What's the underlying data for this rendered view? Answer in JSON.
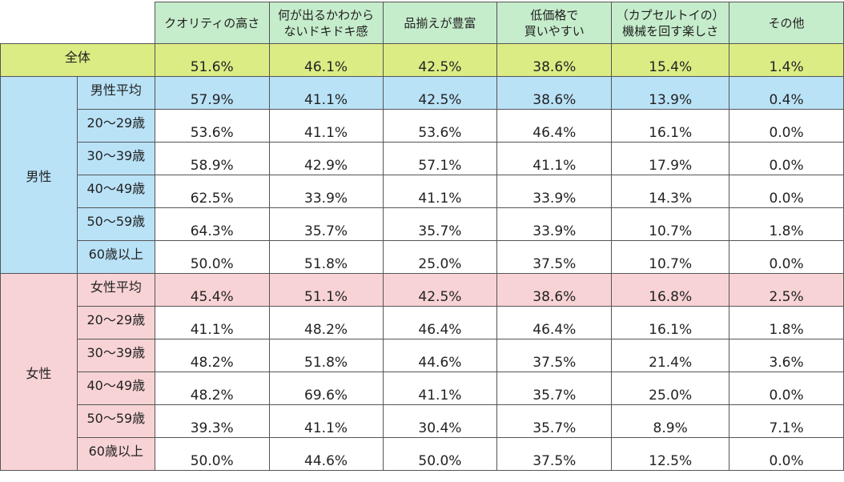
{
  "table": {
    "columns": [
      "クオリティの高さ",
      "何が出るかわから\nないドキドキ感",
      "品揃えが豊富",
      "低価格で\n買いやすい",
      "（カプセルトイの）\n機械を回す楽しさ",
      "その他"
    ],
    "total": {
      "label": "全体",
      "values": [
        "51.6%",
        "46.1%",
        "42.5%",
        "38.6%",
        "15.4%",
        "1.4%"
      ]
    },
    "groups": [
      {
        "label": "男性",
        "rows": [
          {
            "label": "男性平均",
            "values": [
              "57.9%",
              "41.1%",
              "42.5%",
              "38.6%",
              "13.9%",
              "0.4%"
            ]
          },
          {
            "label": "20～29歳",
            "values": [
              "53.6%",
              "41.1%",
              "53.6%",
              "46.4%",
              "16.1%",
              "0.0%"
            ]
          },
          {
            "label": "30～39歳",
            "values": [
              "58.9%",
              "42.9%",
              "57.1%",
              "41.1%",
              "17.9%",
              "0.0%"
            ]
          },
          {
            "label": "40～49歳",
            "values": [
              "62.5%",
              "33.9%",
              "41.1%",
              "33.9%",
              "14.3%",
              "0.0%"
            ]
          },
          {
            "label": "50～59歳",
            "values": [
              "64.3%",
              "35.7%",
              "35.7%",
              "33.9%",
              "10.7%",
              "1.8%"
            ]
          },
          {
            "label": "60歳以上",
            "values": [
              "50.0%",
              "51.8%",
              "25.0%",
              "37.5%",
              "10.7%",
              "0.0%"
            ]
          }
        ]
      },
      {
        "label": "女性",
        "rows": [
          {
            "label": "女性平均",
            "values": [
              "45.4%",
              "51.1%",
              "42.5%",
              "38.6%",
              "16.8%",
              "2.5%"
            ]
          },
          {
            "label": "20～29歳",
            "values": [
              "41.1%",
              "48.2%",
              "46.4%",
              "46.4%",
              "16.1%",
              "1.8%"
            ]
          },
          {
            "label": "30～39歳",
            "values": [
              "48.2%",
              "51.8%",
              "44.6%",
              "37.5%",
              "21.4%",
              "3.6%"
            ]
          },
          {
            "label": "40～49歳",
            "values": [
              "48.2%",
              "69.6%",
              "41.1%",
              "35.7%",
              "25.0%",
              "0.0%"
            ]
          },
          {
            "label": "50～59歳",
            "values": [
              "39.3%",
              "41.1%",
              "30.4%",
              "35.7%",
              "8.9%",
              "7.1%"
            ]
          },
          {
            "label": "60歳以上",
            "values": [
              "50.0%",
              "44.6%",
              "50.0%",
              "37.5%",
              "12.5%",
              "0.0%"
            ]
          }
        ]
      }
    ]
  },
  "colors": {
    "header": "#c5eccb",
    "total": "#dcec84",
    "male": "#b9e2f7",
    "female": "#f8d3d5"
  }
}
